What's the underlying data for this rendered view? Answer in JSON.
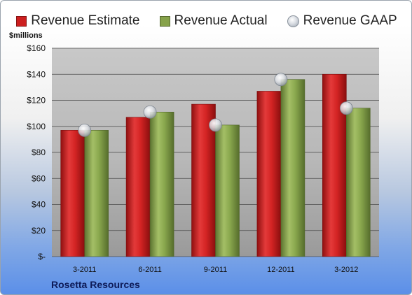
{
  "legend": {
    "estimate": "Revenue Estimate",
    "actual": "Revenue Actual",
    "gaap": "Revenue GAAP"
  },
  "unit_label": "$millions",
  "company": "Rosetta Resources",
  "colors": {
    "estimate": "#cc1f1f",
    "actual": "#86a24a",
    "gaap": "#c9ced6"
  },
  "chart_data": {
    "type": "bar",
    "categories": [
      "3-2011",
      "6-2011",
      "9-2011",
      "12-2011",
      "3-2012"
    ],
    "series": [
      {
        "name": "Revenue Estimate",
        "values": [
          97,
          107,
          117,
          127,
          140
        ]
      },
      {
        "name": "Revenue Actual",
        "values": [
          97,
          111,
          101,
          136,
          114
        ]
      },
      {
        "name": "Revenue GAAP",
        "values": [
          97,
          111,
          101,
          136,
          114
        ],
        "mark": "point"
      }
    ],
    "ylim": [
      0,
      160
    ],
    "yticks": [
      "$-",
      "$20",
      "$40",
      "$60",
      "$80",
      "$100",
      "$120",
      "$140",
      "$160"
    ],
    "ytick_values": [
      0,
      20,
      40,
      60,
      80,
      100,
      120,
      140,
      160
    ],
    "grid": true,
    "legend_position": "top"
  }
}
